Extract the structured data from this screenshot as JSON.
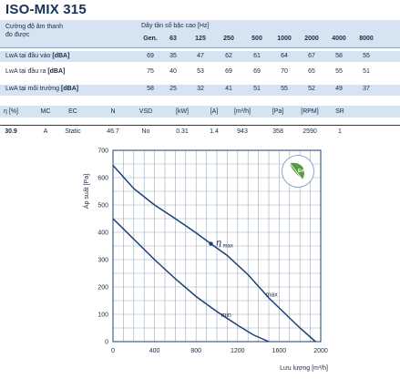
{
  "title": "ISO-MIX 315",
  "sound": {
    "header_label": "Cường độ âm thanh\nđo được",
    "freq_title": "Dãy tần số bậc cao [Hz]",
    "columns": [
      "Gen.",
      "63",
      "125",
      "250",
      "500",
      "1000",
      "2000",
      "4000",
      "8000"
    ],
    "rows": [
      {
        "label_main": "LwA tại đầu vào ",
        "label_unit": "[dBA]",
        "values": [
          "69",
          "35",
          "47",
          "62",
          "61",
          "64",
          "67",
          "58",
          "55"
        ]
      },
      {
        "label_main": "LwA tại đầu ra ",
        "label_unit": "[dBA]",
        "values": [
          "75",
          "40",
          "53",
          "69",
          "69",
          "70",
          "65",
          "55",
          "51"
        ]
      },
      {
        "label_main": "LwA tại môi trường ",
        "label_unit": "[dBA]",
        "values": [
          "58",
          "25",
          "32",
          "41",
          "51",
          "55",
          "52",
          "49",
          "37"
        ]
      }
    ]
  },
  "performance": {
    "headers": [
      "η [%]",
      "MC",
      "EC",
      "N",
      "VSD",
      "[kW]",
      "[A]",
      "[m³/h]",
      "[Pa]",
      "[RPM]",
      "SR"
    ],
    "values": [
      "30.9",
      "A",
      "Static",
      "46.7",
      "No",
      "0.31",
      "1.4",
      "943",
      "358",
      "2590",
      "1"
    ]
  },
  "badge": {
    "text": "ErP",
    "color": "#5a9a3c"
  },
  "accent_color": "#1c3f74",
  "chart_data": {
    "type": "line",
    "ylabel": "Áp suất [Pa]",
    "xlabel": "Lưu lượng [m³/h]",
    "xlim": [
      0,
      2000
    ],
    "ylim": [
      0,
      700
    ],
    "x_ticks": [
      "0",
      "400",
      "800",
      "1200",
      "1600",
      "2000"
    ],
    "y_ticks": [
      "0",
      "100",
      "200",
      "300",
      "400",
      "500",
      "600",
      "700"
    ],
    "grid": true,
    "series": [
      {
        "name": "max",
        "x": [
          0,
          200,
          400,
          600,
          800,
          943,
          1100,
          1300,
          1500,
          1650,
          1800,
          1950
        ],
        "y": [
          645,
          560,
          500,
          450,
          398,
          358,
          315,
          245,
          160,
          105,
          50,
          0
        ]
      },
      {
        "name": "min",
        "x": [
          0,
          200,
          400,
          600,
          800,
          1000,
          1200,
          1350,
          1500
        ],
        "y": [
          450,
          375,
          300,
          230,
          165,
          110,
          60,
          25,
          0
        ]
      }
    ],
    "operating_point": {
      "label": "η",
      "sub": "max",
      "x": 943,
      "y": 358
    }
  }
}
